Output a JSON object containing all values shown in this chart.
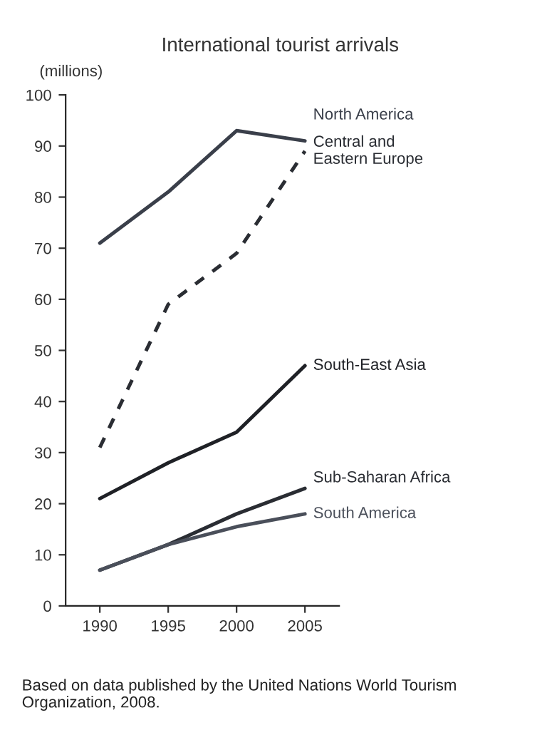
{
  "chart_data": {
    "type": "line",
    "title": "International tourist arrivals",
    "ylabel": "(millions)",
    "x": [
      1990,
      1995,
      2000,
      2005
    ],
    "series": [
      {
        "name": "North America",
        "color": "#3a3f4a",
        "line_style": "solid",
        "values": [
          71,
          81,
          93,
          91
        ]
      },
      {
        "name": "Central and\nEastern Europe",
        "color": "#2a2d33",
        "line_style": "dashed",
        "values": [
          31,
          59,
          69,
          89
        ]
      },
      {
        "name": "South-East Asia",
        "color": "#1f2126",
        "line_style": "solid",
        "values": [
          21,
          28,
          34,
          47
        ]
      },
      {
        "name": "Sub-Saharan Africa",
        "color": "#2a2d33",
        "line_style": "solid",
        "values": [
          7,
          12,
          18,
          23
        ]
      },
      {
        "name": "South America",
        "color": "#4a4f5a",
        "line_style": "solid",
        "values": [
          7,
          12,
          15.5,
          18
        ]
      }
    ],
    "xlim": [
      1987.5,
      2007.5
    ],
    "xticks": [
      1990,
      1995,
      2000,
      2005
    ],
    "ylim": [
      0,
      100
    ],
    "yticks": [
      0,
      10,
      20,
      30,
      40,
      50,
      60,
      70,
      80,
      90,
      100
    ],
    "grid": false,
    "legend": false,
    "marker": "none",
    "annotations": [
      "Based on data published by the United Nations World Tourism Organization, 2008."
    ]
  }
}
